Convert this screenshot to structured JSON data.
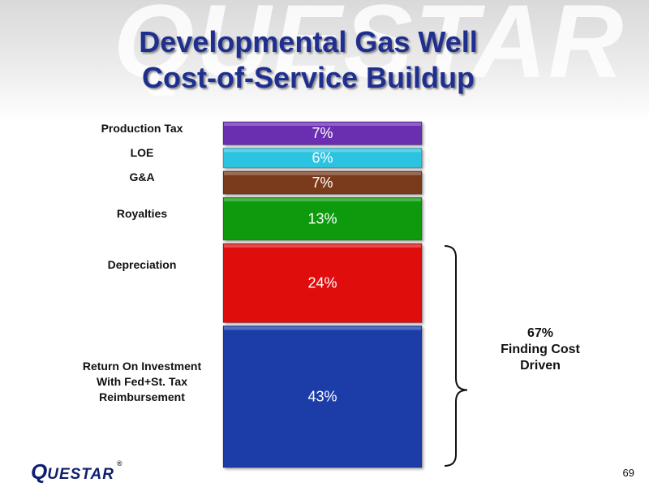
{
  "slide": {
    "watermark_text": "QUESTAR",
    "title_line1": "Developmental Gas Well",
    "title_line2": "Cost-of-Service Buildup",
    "logo": {
      "first": "Q",
      "rest": "UESTAR",
      "reg": "®"
    },
    "page_number": "69"
  },
  "chart_data": {
    "type": "bar",
    "stacked": true,
    "categories": [
      "Return On Investment With Fed+St. Tax Reimbursement",
      "Depreciation",
      "Royalties",
      "G&A",
      "LOE",
      "Production Tax"
    ],
    "label_lines": [
      [
        "Return On Investment",
        "With Fed+St. Tax",
        "Reimbursement"
      ],
      [
        "Depreciation"
      ],
      [
        "Royalties"
      ],
      [
        "G&A"
      ],
      [
        "LOE"
      ],
      [
        "Production Tax"
      ]
    ],
    "values": [
      43,
      24,
      13,
      7,
      6,
      7
    ],
    "value_labels": [
      "43%",
      "24%",
      "13%",
      "7%",
      "6%",
      "7%"
    ],
    "colors": [
      "#1f3ea8",
      "#e00a0a",
      "#0f9a0f",
      "#7a3b1e",
      "#2cc3e0",
      "#6a2fb0"
    ],
    "bracket": {
      "covers_categories": [
        "Return On Investment With Fed+St. Tax Reimbursement",
        "Depreciation"
      ],
      "label_lines": [
        "67%",
        "Finding Cost",
        "Driven"
      ]
    }
  }
}
